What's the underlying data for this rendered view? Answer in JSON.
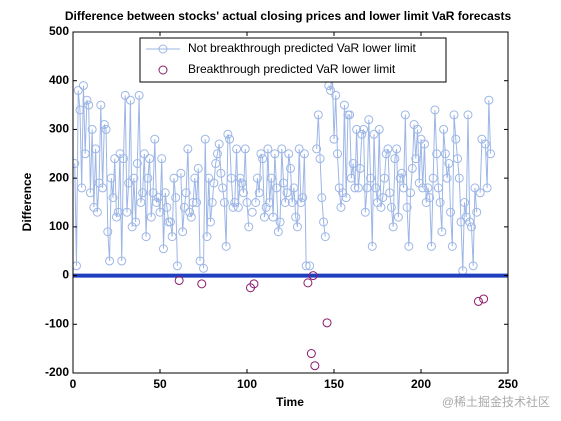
{
  "chart_data": {
    "type": "line",
    "title": "Difference between stocks' actual closing prices and lower limit VaR forecasts",
    "x_label": "Time",
    "y_label": "Difference",
    "watermark": "@稀土掘金技术社区",
    "xlim": [
      0,
      250
    ],
    "ylim": [
      -200,
      500
    ],
    "xticks": [
      0,
      50,
      100,
      150,
      200,
      250
    ],
    "yticks": [
      -200,
      -100,
      0,
      100,
      200,
      300,
      400,
      500
    ],
    "reference_line": {
      "value": 0,
      "color": "#1f3fbf"
    },
    "legend": "top",
    "series": [
      {
        "name": "Not breakthrough predicted VaR lower limit",
        "color": "#9db6e6",
        "marker": "circle",
        "x": [
          1,
          2,
          3,
          4,
          5,
          6,
          7,
          8,
          9,
          10,
          11,
          12,
          13,
          14,
          15,
          16,
          17,
          18,
          19,
          20,
          21,
          22,
          23,
          24,
          25,
          26,
          27,
          28,
          29,
          30,
          31,
          32,
          33,
          34,
          35,
          36,
          37,
          38,
          39,
          40,
          41,
          42,
          43,
          44,
          45,
          46,
          47,
          48,
          49,
          50,
          51,
          52,
          53,
          54,
          55,
          56,
          57,
          58,
          59,
          60,
          61,
          62,
          63,
          64,
          65,
          66,
          67,
          68,
          69,
          70,
          71,
          72,
          73,
          74,
          75,
          76,
          77,
          78,
          79,
          80,
          81,
          82,
          83,
          84,
          85,
          86,
          87,
          88,
          89,
          90,
          91,
          92,
          93,
          94,
          95,
          96,
          97,
          98,
          99,
          100,
          101,
          102,
          103,
          104,
          105,
          106,
          107,
          108,
          109,
          110,
          111,
          112,
          113,
          114,
          115,
          116,
          117,
          118,
          119,
          120,
          121,
          122,
          123,
          124,
          125,
          126,
          127,
          128,
          129,
          130,
          131,
          132,
          133,
          134,
          135,
          136,
          137,
          138,
          139,
          140,
          141,
          142,
          143,
          144,
          145,
          146,
          147,
          148,
          149,
          150,
          151,
          152,
          153,
          154,
          155,
          156,
          157,
          158,
          159,
          160,
          161,
          162,
          163,
          164,
          165,
          166,
          167,
          168,
          169,
          170,
          171,
          172,
          173,
          174,
          175,
          176,
          177,
          178,
          179,
          180,
          181,
          182,
          183,
          184,
          185,
          186,
          187,
          188,
          189,
          190,
          191,
          192,
          193,
          194,
          195,
          196,
          197,
          198,
          199,
          200,
          201,
          202,
          203,
          204,
          205,
          206,
          207,
          208,
          209,
          210,
          211,
          212,
          213,
          214,
          215,
          216,
          217,
          218,
          219,
          220,
          221,
          222,
          223,
          224,
          225,
          226,
          227,
          228,
          229,
          230,
          231,
          232,
          233,
          234,
          235,
          236,
          237,
          238,
          239,
          240
        ],
        "values": [
          230,
          20,
          380,
          340,
          180,
          390,
          250,
          360,
          350,
          170,
          300,
          140,
          260,
          130,
          190,
          350,
          180,
          310,
          300,
          90,
          30,
          200,
          160,
          240,
          120,
          130,
          250,
          30,
          240,
          370,
          130,
          190,
          360,
          100,
          200,
          110,
          230,
          370,
          150,
          170,
          250,
          80,
          200,
          240,
          120,
          170,
          280,
          150,
          160,
          130,
          240,
          55,
          170,
          140,
          110,
          110,
          80,
          200,
          160,
          20,
          null,
          210,
          90,
          140,
          170,
          260,
          130,
          120,
          150,
          200,
          150,
          220,
          30,
          null,
          15,
          280,
          80,
          200,
          110,
          150,
          190,
          230,
          250,
          270,
          210,
          180,
          150,
          60,
          290,
          280,
          200,
          140,
          150,
          260,
          140,
          200,
          190,
          170,
          260,
          150,
          100,
          null,
          130,
          null,
          150,
          200,
          170,
          250,
          240,
          120,
          140,
          260,
          150,
          200,
          120,
          250,
          180,
          90,
          110,
          260,
          190,
          150,
          170,
          250,
          220,
          150,
          180,
          120,
          100,
          260,
          150,
          160,
          250,
          20,
          null,
          20,
          null,
          null,
          null,
          260,
          330,
          240,
          160,
          110,
          80,
          null,
          390,
          380,
          420,
          280,
          370,
          250,
          180,
          140,
          170,
          350,
          160,
          330,
          330,
          200,
          230,
          180,
          300,
          180,
          220,
          290,
          300,
          130,
          180,
          320,
          200,
          60,
          290,
          180,
          150,
          300,
          140,
          160,
          200,
          250,
          260,
          170,
          140,
          100,
          240,
          260,
          120,
          200,
          210,
          180,
          330,
          140,
          60,
          170,
          220,
          310,
          240,
          300,
          190,
          280,
          180,
          270,
          150,
          180,
          160,
          60,
          200,
          340,
          250,
          180,
          150,
          90,
          300,
          250,
          200,
          230,
          130,
          60,
          330,
          280,
          240,
          200,
          110,
          10,
          150,
          120,
          330,
          110,
          100,
          20,
          180,
          130,
          null,
          170,
          280,
          null,
          270,
          180,
          360,
          250
        ]
      },
      {
        "name": "Breakthrough predicted VaR lower limit",
        "color": "#8b1a6b",
        "marker": "circle",
        "line": false,
        "x": [
          61,
          74,
          102,
          104,
          135,
          137,
          138,
          139,
          146,
          233,
          236
        ],
        "values": [
          -10,
          -17,
          -25,
          -17,
          -15,
          -160,
          0,
          -185,
          -97,
          -53,
          -48
        ]
      }
    ]
  }
}
